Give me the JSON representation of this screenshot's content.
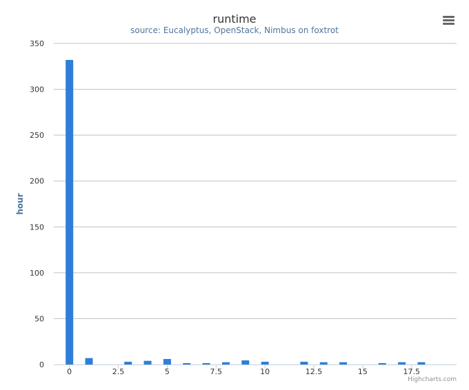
{
  "chart_data": {
    "type": "bar",
    "title": "runtime",
    "subtitle": "source: Eucalyptus, OpenStack, Nimbus on foxtrot",
    "xlabel": "",
    "ylabel": "hour",
    "x": [
      0,
      1,
      2,
      3,
      4,
      5,
      6,
      7,
      8,
      9,
      10,
      11,
      12,
      13,
      14,
      15,
      16,
      17,
      18
    ],
    "values": [
      332,
      7,
      0,
      3,
      4,
      6,
      1.5,
      1.5,
      2.5,
      4.5,
      3,
      0,
      3,
      2.5,
      2.5,
      0,
      1.5,
      2.5,
      2.5
    ],
    "xlim": [
      -0.8,
      19.8
    ],
    "ylim": [
      0,
      350
    ],
    "xticks": [
      0,
      2.5,
      5,
      7.5,
      10,
      12.5,
      15,
      17.5
    ],
    "xtick_labels": [
      "0",
      "2.5",
      "5",
      "7.5",
      "10",
      "12.5",
      "15",
      "17.5"
    ],
    "yticks": [
      0,
      50,
      100,
      150,
      200,
      250,
      300,
      350
    ],
    "ytick_labels": [
      "0",
      "50",
      "100",
      "150",
      "200",
      "250",
      "300",
      "350"
    ],
    "grid": true,
    "legend": "none",
    "colors": {
      "bar": "#2f7ed8",
      "grid": "#c0c0c0",
      "axis_line": "#c0d0e0"
    }
  },
  "credits": "Highcharts.com",
  "menu_icon": "hamburger-menu-icon"
}
